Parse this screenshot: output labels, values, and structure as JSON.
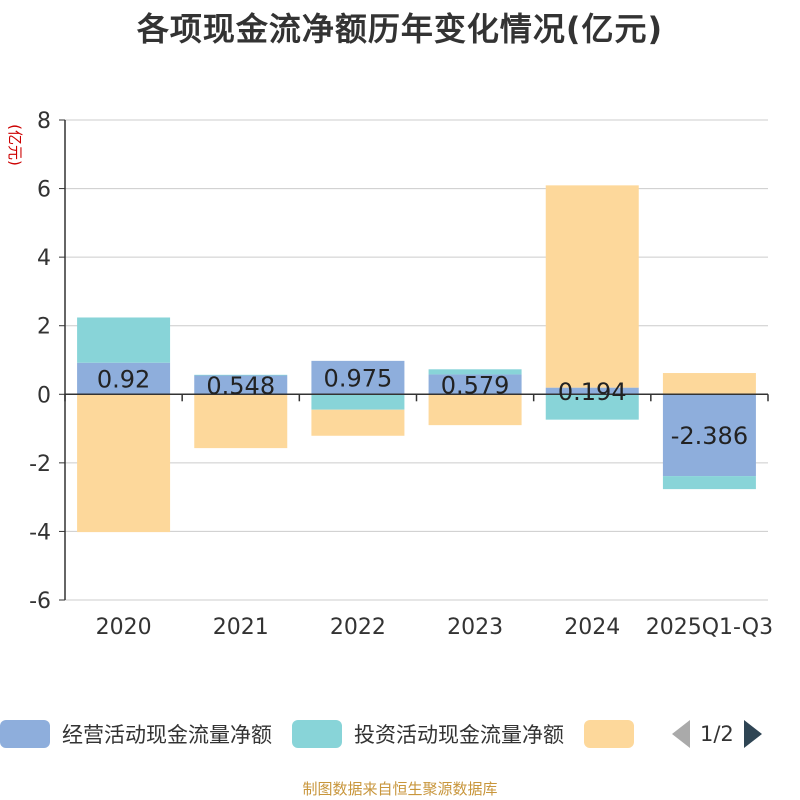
{
  "chart_data": {
    "type": "bar",
    "stacked": true,
    "title": "各项现金流净额历年变化情况(亿元)",
    "ylabel": "(亿元)",
    "xlabel": "",
    "ylim": [
      -6,
      8
    ],
    "yticks": [
      -6,
      -4,
      -2,
      0,
      2,
      4,
      6,
      8
    ],
    "categories": [
      "2020",
      "2021",
      "2022",
      "2023",
      "2024",
      "2025Q1-Q3"
    ],
    "series": [
      {
        "name": "经营活动现金流量净额",
        "color": "#8eaedc",
        "values": [
          0.92,
          0.548,
          0.975,
          0.579,
          0.194,
          -2.386
        ],
        "labels": [
          "0.92",
          "0.548",
          "0.975",
          "0.579",
          "0.194",
          "-2.386"
        ]
      },
      {
        "name": "投资活动现金流量净额",
        "color": "#88d4d8",
        "values": [
          1.32,
          0.02,
          -0.45,
          0.15,
          -0.74,
          -0.38
        ]
      },
      {
        "name": "",
        "color": "#fdd89b",
        "values": [
          -4.02,
          -1.57,
          -0.76,
          -0.9,
          5.9,
          0.62
        ]
      }
    ],
    "grid": true,
    "legend": "bottom"
  },
  "legend": {
    "page": "1/2"
  },
  "source": "制图数据来自恒生聚源数据库"
}
